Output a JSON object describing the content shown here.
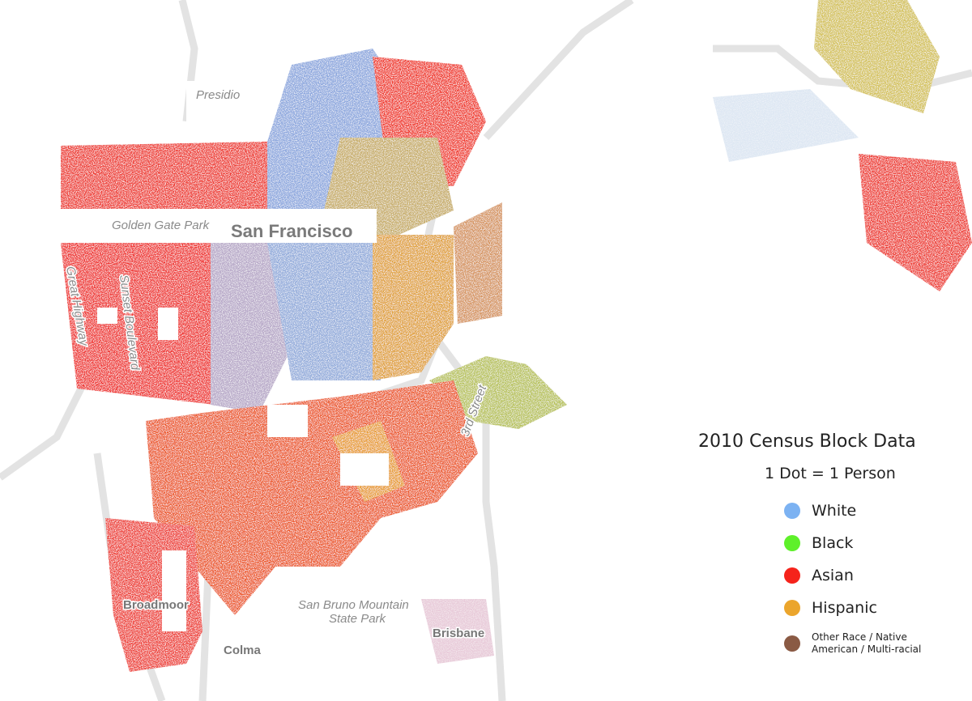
{
  "map": {
    "labels": [
      "Presidio",
      "Golden Gate Park",
      "San Francisco",
      "Great Highway",
      "Sunset Boulevard",
      "3rd Street",
      "San Bruno Mountain",
      "State Park",
      "Broadmoor",
      "Colma",
      "Brisbane"
    ],
    "legend": {
      "title": "2010 Census Block Data",
      "subtitle": "1 Dot = 1 Person",
      "items": [
        {
          "label": "White",
          "color": "#7cb2f2"
        },
        {
          "label": "Black",
          "color": "#5ef02a"
        },
        {
          "label": "Asian",
          "color": "#f5231b"
        },
        {
          "label": "Hispanic",
          "color": "#eba52c"
        },
        {
          "label": "Other Race / Native American / Multi-racial",
          "color": "#8a5a44"
        }
      ]
    }
  }
}
